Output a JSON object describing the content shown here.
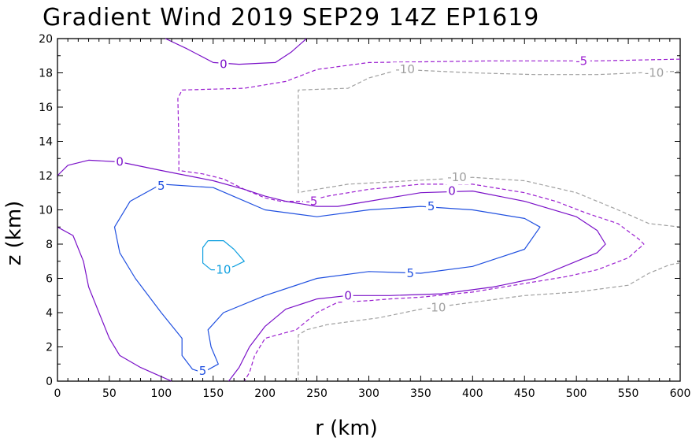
{
  "chart_data": {
    "type": "contour",
    "title": "Gradient Wind 2019 SEP29 14Z   EP1619",
    "xlabel": "r (km)",
    "ylabel": "z (km)",
    "xlim": [
      0,
      600
    ],
    "ylim": [
      0,
      20
    ],
    "xticks": [
      "0",
      "50",
      "100",
      "150",
      "200",
      "250",
      "300",
      "350",
      "400",
      "450",
      "500",
      "550",
      "600"
    ],
    "yticks": [
      "0",
      "2",
      "4",
      "6",
      "8",
      "10",
      "12",
      "14",
      "16",
      "18",
      "20"
    ],
    "colors": {
      "neg10": "#a0a0a0",
      "neg5": "#9b1fd0",
      "zero": "#7a10c8",
      "pos5": "#2050e0",
      "pos10": "#10a0e0"
    },
    "contours": [
      {
        "id": "zero-top",
        "level": 0,
        "label": "0",
        "style": "solid",
        "color_key": "zero",
        "points": [
          [
            104,
            20
          ],
          [
            125,
            19.4
          ],
          [
            150,
            18.6
          ],
          [
            175,
            18.5
          ],
          [
            210,
            18.6
          ],
          [
            225,
            19.2
          ],
          [
            240,
            20
          ]
        ],
        "labels": [
          {
            "x": 160,
            "y": 18.5,
            "text": "0"
          }
        ]
      },
      {
        "id": "neg5-main",
        "level": -5,
        "label": "-5",
        "style": "dashed",
        "color_key": "neg5",
        "points": [
          [
            600,
            18.8
          ],
          [
            520,
            18.7
          ],
          [
            420,
            18.7
          ],
          [
            300,
            18.6
          ],
          [
            250,
            18.2
          ],
          [
            220,
            17.5
          ],
          [
            180,
            17.1
          ],
          [
            120,
            17
          ],
          [
            116,
            16.5
          ],
          [
            117,
            14
          ],
          [
            117,
            12.3
          ],
          [
            140,
            12.1
          ],
          [
            160,
            11.8
          ],
          [
            180,
            11.2
          ],
          [
            200,
            10.7
          ],
          [
            215,
            10.5
          ],
          [
            240,
            10.5
          ],
          [
            260,
            10.8
          ],
          [
            300,
            11.2
          ],
          [
            350,
            11.5
          ],
          [
            400,
            11.5
          ],
          [
            450,
            11
          ],
          [
            480,
            10.5
          ],
          [
            510,
            9.8
          ],
          [
            540,
            9.2
          ],
          [
            560,
            8.3
          ],
          [
            565,
            8
          ],
          [
            550,
            7.2
          ],
          [
            520,
            6.5
          ],
          [
            490,
            6.1
          ],
          [
            450,
            5.7
          ],
          [
            400,
            5.2
          ],
          [
            350,
            4.9
          ],
          [
            320,
            4.8
          ],
          [
            300,
            4.7
          ],
          [
            270,
            4.6
          ],
          [
            250,
            4
          ],
          [
            230,
            3
          ],
          [
            200,
            2.5
          ],
          [
            190,
            1.5
          ],
          [
            185,
            0.5
          ],
          [
            180,
            0
          ]
        ],
        "labels": [
          {
            "x": 505,
            "y": 18.7,
            "text": "-5"
          },
          {
            "x": 245,
            "y": 10.5,
            "text": "-5"
          }
        ]
      },
      {
        "id": "neg10-main",
        "level": -10,
        "label": "-10",
        "style": "dashed",
        "color_key": "neg10",
        "points": [
          [
            600,
            18.1
          ],
          [
            560,
            18
          ],
          [
            520,
            17.9
          ],
          [
            460,
            17.9
          ],
          [
            400,
            18
          ],
          [
            330,
            18.2
          ],
          [
            300,
            17.7
          ],
          [
            280,
            17.1
          ],
          [
            232,
            17
          ],
          [
            232,
            11
          ],
          [
            240,
            11.1
          ],
          [
            280,
            11.5
          ],
          [
            340,
            11.7
          ],
          [
            400,
            11.9
          ],
          [
            450,
            11.7
          ],
          [
            500,
            11
          ],
          [
            540,
            10
          ],
          [
            570,
            9.2
          ],
          [
            600,
            9
          ]
        ],
        "labels": [
          {
            "x": 575,
            "y": 18,
            "text": "-10"
          },
          {
            "x": 335,
            "y": 18.2,
            "text": "-10"
          },
          {
            "x": 385,
            "y": 11.9,
            "text": "-10"
          }
        ]
      },
      {
        "id": "neg10-low",
        "level": -10,
        "label": "-10",
        "style": "dashed",
        "color_key": "neg10",
        "points": [
          [
            600,
            6.9
          ],
          [
            590,
            6.8
          ],
          [
            570,
            6.3
          ],
          [
            550,
            5.6
          ],
          [
            500,
            5.2
          ],
          [
            450,
            5
          ],
          [
            400,
            4.6
          ],
          [
            350,
            4.2
          ],
          [
            310,
            3.7
          ],
          [
            260,
            3.3
          ],
          [
            240,
            3
          ],
          [
            232,
            2.7
          ],
          [
            232,
            0
          ]
        ],
        "labels": [
          {
            "x": 365,
            "y": 4.3,
            "text": "-10"
          }
        ]
      },
      {
        "id": "zero-main",
        "level": 0,
        "label": "0",
        "style": "solid",
        "color_key": "zero",
        "points": [
          [
            0,
            12
          ],
          [
            10,
            12.6
          ],
          [
            30,
            12.9
          ],
          [
            60,
            12.8
          ],
          [
            100,
            12.3
          ],
          [
            150,
            11.7
          ],
          [
            180,
            11.2
          ],
          [
            200,
            10.8
          ],
          [
            220,
            10.5
          ],
          [
            250,
            10.2
          ],
          [
            270,
            10.2
          ],
          [
            300,
            10.5
          ],
          [
            350,
            11
          ],
          [
            400,
            11.1
          ],
          [
            450,
            10.5
          ],
          [
            500,
            9.6
          ],
          [
            520,
            8.8
          ],
          [
            528,
            8
          ],
          [
            520,
            7.5
          ],
          [
            500,
            7
          ],
          [
            460,
            6
          ],
          [
            420,
            5.5
          ],
          [
            370,
            5.1
          ],
          [
            320,
            5
          ],
          [
            280,
            5
          ],
          [
            250,
            4.8
          ],
          [
            220,
            4.2
          ],
          [
            200,
            3.2
          ],
          [
            185,
            2
          ],
          [
            175,
            0.8
          ],
          [
            165,
            0
          ]
        ],
        "labels": [
          {
            "x": 60,
            "y": 12.8,
            "text": "0"
          },
          {
            "x": 380,
            "y": 11.1,
            "text": "0"
          },
          {
            "x": 280,
            "y": 5,
            "text": "0"
          }
        ]
      },
      {
        "id": "zero-left",
        "level": 0,
        "label": "0",
        "style": "solid",
        "color_key": "zero",
        "points": [
          [
            0,
            9
          ],
          [
            15,
            8.5
          ],
          [
            25,
            7
          ],
          [
            30,
            5.5
          ],
          [
            40,
            4
          ],
          [
            50,
            2.5
          ],
          [
            60,
            1.5
          ],
          [
            80,
            0.8
          ],
          [
            95,
            0.4
          ],
          [
            110,
            0
          ]
        ],
        "labels": []
      },
      {
        "id": "pos5",
        "level": 5,
        "label": "5",
        "style": "solid",
        "color_key": "pos5",
        "points": [
          [
            140,
            0.5
          ],
          [
            155,
            1
          ],
          [
            148,
            2
          ],
          [
            145,
            3
          ],
          [
            160,
            4
          ],
          [
            200,
            5
          ],
          [
            250,
            6
          ],
          [
            300,
            6.4
          ],
          [
            350,
            6.3
          ],
          [
            400,
            6.7
          ],
          [
            450,
            7.7
          ],
          [
            465,
            9
          ],
          [
            450,
            9.5
          ],
          [
            400,
            10
          ],
          [
            350,
            10.2
          ],
          [
            300,
            10
          ],
          [
            250,
            9.6
          ],
          [
            200,
            10
          ],
          [
            150,
            11.3
          ],
          [
            100,
            11.5
          ],
          [
            70,
            10.5
          ],
          [
            55,
            9
          ],
          [
            60,
            7.5
          ],
          [
            75,
            6
          ],
          [
            100,
            4
          ],
          [
            120,
            2.5
          ],
          [
            120,
            1.5
          ],
          [
            130,
            0.7
          ],
          [
            140,
            0.5
          ]
        ],
        "labels": [
          {
            "x": 140,
            "y": 0.6,
            "text": "5"
          },
          {
            "x": 100,
            "y": 11.4,
            "text": "5"
          },
          {
            "x": 360,
            "y": 10.2,
            "text": "5"
          },
          {
            "x": 340,
            "y": 6.3,
            "text": "5"
          }
        ]
      },
      {
        "id": "pos10",
        "level": 10,
        "label": "10",
        "style": "solid",
        "color_key": "pos10",
        "points": [
          [
            145,
            8.2
          ],
          [
            160,
            8.2
          ],
          [
            170,
            7.7
          ],
          [
            180,
            7
          ],
          [
            170,
            6.7
          ],
          [
            160,
            6.5
          ],
          [
            148,
            6.5
          ],
          [
            140,
            6.9
          ],
          [
            140,
            7.8
          ],
          [
            145,
            8.2
          ]
        ],
        "labels": [
          {
            "x": 160,
            "y": 6.5,
            "text": "10"
          }
        ]
      }
    ]
  }
}
